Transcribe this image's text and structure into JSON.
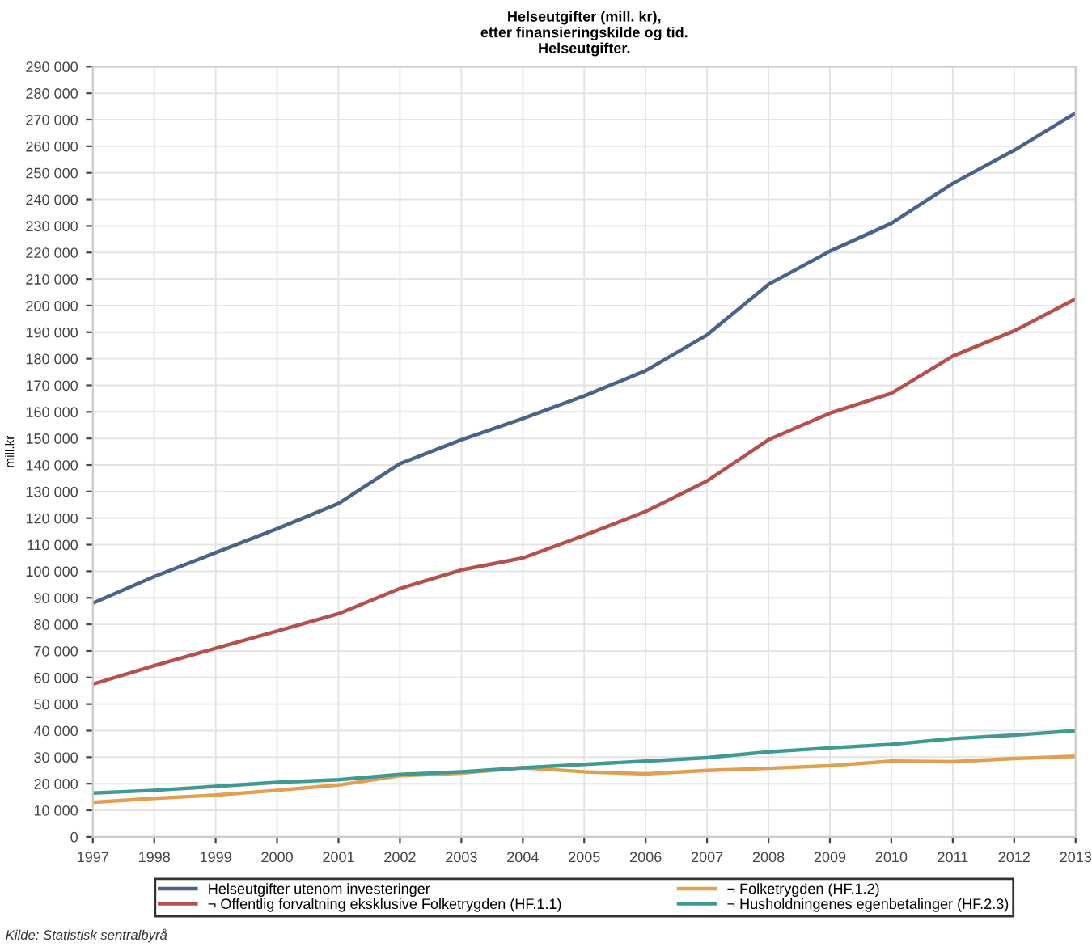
{
  "chart_data": {
    "type": "line",
    "title": "Helseutgifter (mill. kr),\netter finansieringskilde og tid.\nHelseutgifter.",
    "ylabel": "mill.kr",
    "x": [
      1997,
      1998,
      1999,
      2000,
      2001,
      2002,
      2003,
      2004,
      2005,
      2006,
      2007,
      2008,
      2009,
      2010,
      2011,
      2012,
      2013
    ],
    "series": [
      {
        "name": "Helseutgifter utenom investeringer",
        "color": "#4a6388",
        "values": [
          88000,
          98000,
          107000,
          116000,
          125500,
          140500,
          149500,
          157500,
          166000,
          175500,
          189000,
          208000,
          220500,
          231000,
          246000,
          258500,
          272500
        ]
      },
      {
        "name": "¬ Offentlig forvaltning eksklusive Folketrygden (HF.1.1)",
        "color": "#b5504c",
        "values": [
          57500,
          64500,
          71000,
          77500,
          84000,
          93500,
          100500,
          105000,
          113500,
          122500,
          134000,
          149500,
          159500,
          167000,
          181000,
          190500,
          202500
        ]
      },
      {
        "name": "¬ Folketrygden (HF.1.2)",
        "color": "#e0a050",
        "values": [
          13000,
          14500,
          15700,
          17500,
          19500,
          23000,
          24000,
          26000,
          24500,
          23700,
          25000,
          25800,
          26800,
          28500,
          28300,
          29500,
          30300
        ]
      },
      {
        "name": "¬ Husholdningenes egenbetalinger (HF.2.3)",
        "color": "#3f9a94",
        "values": [
          16500,
          17500,
          19000,
          20500,
          21500,
          23500,
          24500,
          26000,
          27300,
          28500,
          29800,
          32000,
          33500,
          34800,
          37000,
          38300,
          40000
        ]
      }
    ],
    "xlim": [
      1997,
      2013
    ],
    "xticks": [
      1997,
      1998,
      1999,
      2000,
      2001,
      2002,
      2003,
      2004,
      2005,
      2006,
      2007,
      2008,
      2009,
      2010,
      2011,
      2012,
      2013
    ],
    "ylim": [
      0,
      290000
    ],
    "yticks": [
      0,
      {
        "value": 10000,
        "label": "10 000"
      },
      {
        "value": 20000,
        "label": "20 000"
      },
      {
        "value": 30000,
        "label": "30 000"
      },
      {
        "value": 40000,
        "label": "40 000"
      },
      {
        "value": 50000,
        "label": "50 000"
      },
      {
        "value": 60000,
        "label": "60 000"
      },
      {
        "value": 70000,
        "label": "70 000"
      },
      {
        "value": 80000,
        "label": "80 000"
      },
      {
        "value": 90000,
        "label": "90 000"
      },
      {
        "value": 100000,
        "label": "100 000"
      },
      {
        "value": 110000,
        "label": "110 000"
      },
      {
        "value": 120000,
        "label": "120 000"
      },
      {
        "value": 130000,
        "label": "130 000"
      },
      {
        "value": 140000,
        "label": "140 000"
      },
      {
        "value": 150000,
        "label": "150 000"
      },
      {
        "value": 160000,
        "label": "160 000"
      },
      {
        "value": 170000,
        "label": "170 000"
      },
      {
        "value": 180000,
        "label": "180 000"
      },
      {
        "value": 190000,
        "label": "190 000"
      },
      {
        "value": 200000,
        "label": "200 000"
      },
      {
        "value": 210000,
        "label": "210 000"
      },
      {
        "value": 220000,
        "label": "220 000"
      },
      {
        "value": 230000,
        "label": "230 000"
      },
      {
        "value": 240000,
        "label": "240 000"
      },
      {
        "value": 250000,
        "label": "250 000"
      },
      {
        "value": 260000,
        "label": "260 000"
      },
      {
        "value": 270000,
        "label": "270 000"
      },
      {
        "value": 280000,
        "label": "280 000"
      },
      {
        "value": 290000,
        "label": "290 000"
      }
    ],
    "grid": true,
    "legend": "bottom",
    "marker": "none",
    "line_style": "solid",
    "annotations": [
      "Kilde: Statistisk sentralbyrå"
    ]
  }
}
